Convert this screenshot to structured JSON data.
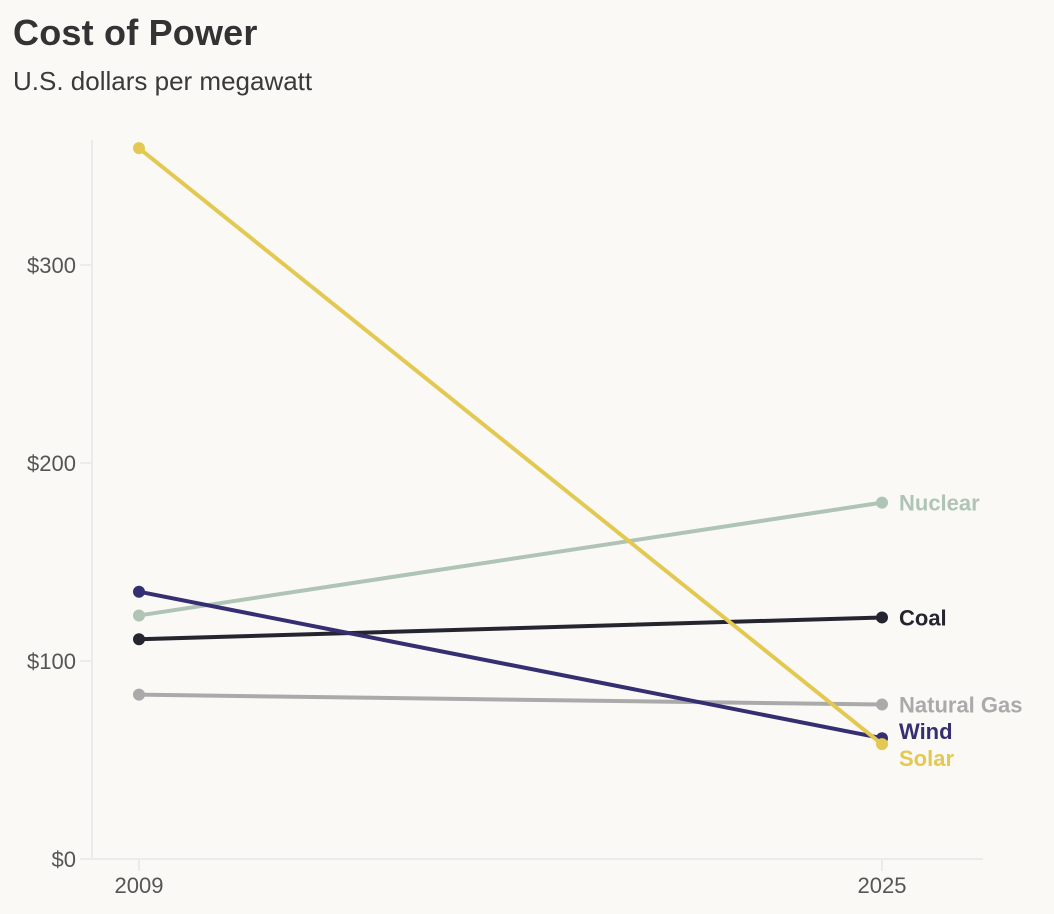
{
  "chart_data": {
    "type": "line",
    "title": "Cost of Power",
    "subtitle": "U.S. dollars per megawatt",
    "xlabel": "",
    "ylabel": "",
    "x": [
      "2009",
      "2025"
    ],
    "ylim": [
      0,
      360
    ],
    "yticks": [
      0,
      100,
      200,
      300
    ],
    "ytick_labels": [
      "$0",
      "$100",
      "$200",
      "$300"
    ],
    "xtick_labels": [
      "2009",
      "2025"
    ],
    "grid": false,
    "legend": "direct labels at right end of lines",
    "series": [
      {
        "name": "Nuclear",
        "values": [
          123,
          180
        ],
        "color": "#b0c4b6"
      },
      {
        "name": "Coal",
        "values": [
          111,
          122
        ],
        "color": "#252530"
      },
      {
        "name": "Natural Gas",
        "values": [
          83,
          78
        ],
        "color": "#aaaaaa"
      },
      {
        "name": "Wind",
        "values": [
          135,
          61
        ],
        "color": "#352f72"
      },
      {
        "name": "Solar",
        "values": [
          359,
          58
        ],
        "color": "#e3c952"
      }
    ]
  },
  "colors": {
    "background": "#faf9f6",
    "axis": "#ebebeb",
    "text": "#333333"
  }
}
